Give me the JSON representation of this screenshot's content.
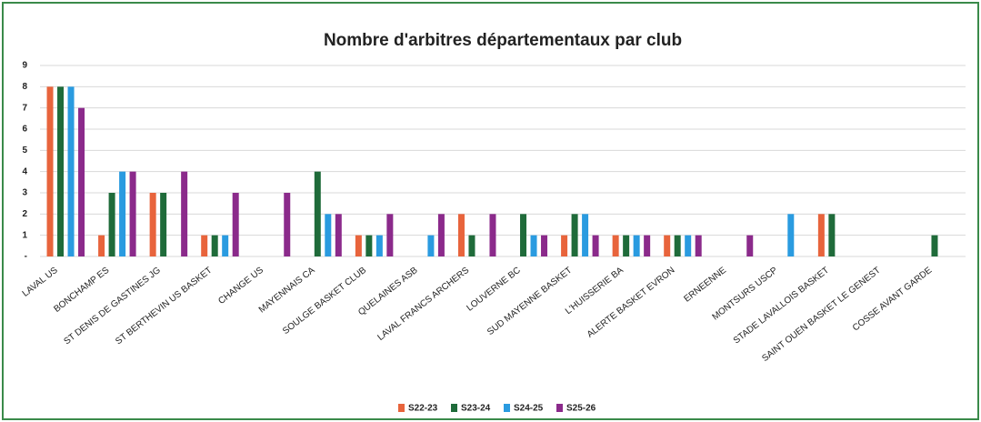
{
  "chart_data": {
    "type": "bar",
    "title": "Nombre d'arbitres départementaux par club",
    "categories": [
      "LAVAL US",
      "BONCHAMP ES",
      "ST DENIS DE GASTINES JG",
      "ST BERTHEVIN US BASKET",
      "CHANGE US",
      "MAYENNAIS CA",
      "SOULGE BASKET CLUB",
      "QUELAINES ASB",
      "LAVAL FRANCS ARCHERS",
      "LOUVERNE BC",
      "SUD MAYENNE BASKET",
      "L'HUISSERIE BA",
      "ALERTE BASKET EVRON",
      "ERNEENNE",
      "MONTSURS USCP",
      "STADE LAVALLOIS BASKET",
      "SAINT OUEN BASKET LE GENEST",
      "COSSE AVANT GARDE"
    ],
    "series": [
      {
        "name": "S22-23",
        "color": "#e8643c",
        "values": [
          8,
          1,
          3,
          1,
          null,
          null,
          1,
          null,
          2,
          null,
          1,
          1,
          1,
          null,
          null,
          2,
          null,
          null
        ]
      },
      {
        "name": "S23-24",
        "color": "#1f6b3a",
        "values": [
          8,
          3,
          3,
          1,
          null,
          4,
          1,
          null,
          1,
          2,
          2,
          1,
          1,
          null,
          null,
          2,
          null,
          1
        ]
      },
      {
        "name": "S24-25",
        "color": "#2a9be0",
        "values": [
          8,
          4,
          null,
          1,
          null,
          2,
          1,
          1,
          null,
          1,
          2,
          1,
          1,
          null,
          2,
          null,
          null,
          null
        ]
      },
      {
        "name": "S25-26",
        "color": "#8b2a8b",
        "values": [
          7,
          4,
          4,
          3,
          3,
          2,
          2,
          2,
          2,
          1,
          1,
          1,
          1,
          1,
          null,
          null,
          null,
          null
        ]
      }
    ],
    "ylim": [
      0,
      9
    ],
    "yticks": [
      {
        "value": 0,
        "label": "-"
      },
      1,
      2,
      3,
      4,
      5,
      6,
      7,
      8,
      9
    ],
    "grid": true,
    "legend": "bottom"
  }
}
